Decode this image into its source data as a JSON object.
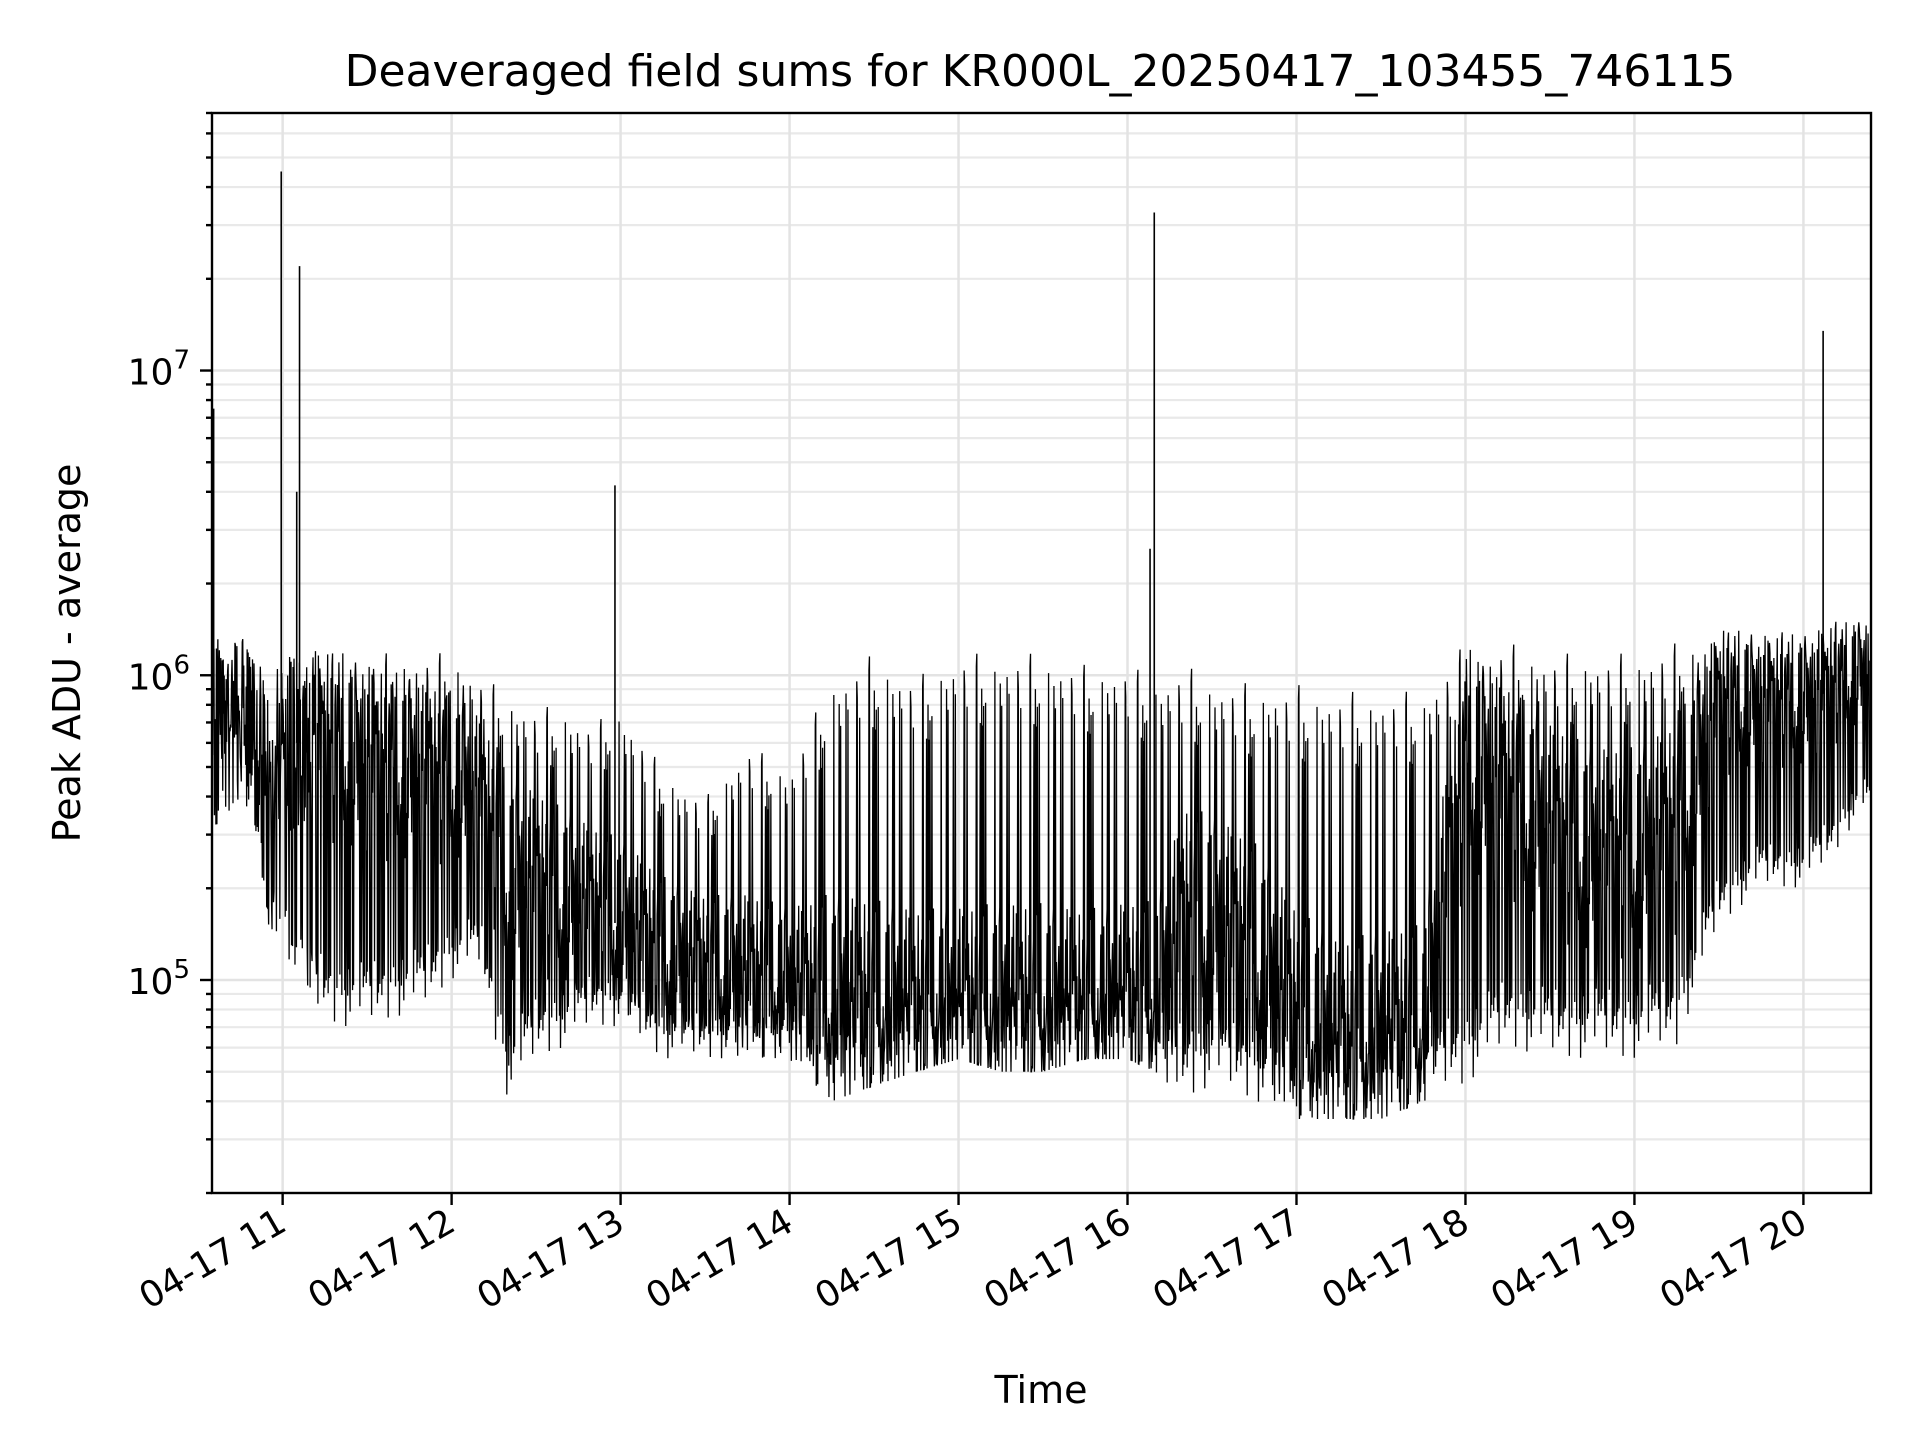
{
  "chart_data": {
    "type": "line",
    "title": "Deaveraged field sums for KR000L_20250417_103455_746115",
    "xlabel": "Time",
    "ylabel": "Peak ADU - average",
    "y_scale": "log",
    "ylim": [
      20000,
      70000000
    ],
    "xlim": [
      "2025-04-17T10:34:55",
      "2025-04-17T20:24:00"
    ],
    "x_ticks": [
      "2025-04-17T11:00",
      "2025-04-17T12:00",
      "2025-04-17T13:00",
      "2025-04-17T14:00",
      "2025-04-17T15:00",
      "2025-04-17T16:00",
      "2025-04-17T17:00",
      "2025-04-17T18:00",
      "2025-04-17T19:00",
      "2025-04-17T20:00"
    ],
    "x_tick_labels": [
      "04-17 11",
      "04-17 12",
      "04-17 13",
      "04-17 14",
      "04-17 15",
      "04-17 16",
      "04-17 17",
      "04-17 18",
      "04-17 19",
      "04-17 20"
    ],
    "y_ticks": [
      100000,
      1000000,
      10000000
    ],
    "y_tick_labels": [
      {
        "base": "10",
        "exp": "5"
      },
      {
        "base": "10",
        "exp": "6"
      },
      {
        "base": "10",
        "exp": "7"
      }
    ],
    "grid": "major and minor",
    "legend": "none",
    "series_color": "#000000",
    "series": [
      {
        "x": [
          "2025-04-17T10:35",
          "2025-04-17T10:40",
          "2025-04-17T10:45",
          "2025-04-17T10:50",
          "2025-04-17T10:55",
          "2025-04-17T11:00",
          "2025-04-17T11:05",
          "2025-04-17T11:10",
          "2025-04-17T11:20",
          "2025-04-17T11:30",
          "2025-04-17T11:40",
          "2025-04-17T11:50",
          "2025-04-17T12:00",
          "2025-04-17T12:10",
          "2025-04-17T12:20",
          "2025-04-17T12:30",
          "2025-04-17T12:40",
          "2025-04-17T12:50",
          "2025-04-17T13:00",
          "2025-04-17T13:15",
          "2025-04-17T13:30",
          "2025-04-17T13:45",
          "2025-04-17T14:00",
          "2025-04-17T14:15",
          "2025-04-17T14:30",
          "2025-04-17T14:45",
          "2025-04-17T15:00",
          "2025-04-17T15:15",
          "2025-04-17T15:30",
          "2025-04-17T15:45",
          "2025-04-17T16:00",
          "2025-04-17T16:10",
          "2025-04-17T16:20",
          "2025-04-17T16:30",
          "2025-04-17T16:45",
          "2025-04-17T17:00",
          "2025-04-17T17:15",
          "2025-04-17T17:30",
          "2025-04-17T17:45",
          "2025-04-17T18:00",
          "2025-04-17T18:15",
          "2025-04-17T18:30",
          "2025-04-17T18:45",
          "2025-04-17T19:00",
          "2025-04-17T19:15",
          "2025-04-17T19:30",
          "2025-04-17T19:45",
          "2025-04-17T20:00",
          "2025-04-17T20:10",
          "2025-04-17T20:20"
        ],
        "low": [
          300000,
          350000,
          400000,
          300000,
          150000,
          120000,
          90000,
          80000,
          70000,
          70000,
          75000,
          80000,
          100000,
          110000,
          40000,
          55000,
          60000,
          70000,
          70000,
          55000,
          55000,
          55000,
          55000,
          40000,
          45000,
          50000,
          55000,
          50000,
          50000,
          55000,
          55000,
          50000,
          40000,
          45000,
          40000,
          35000,
          35000,
          35000,
          40000,
          45000,
          60000,
          55000,
          55000,
          55000,
          60000,
          150000,
          200000,
          200000,
          250000,
          350000
        ],
        "high": [
          1500000,
          1200000,
          1400000,
          1200000,
          1000000,
          1100000,
          1200000,
          1200000,
          1200000,
          1200000,
          1200000,
          1200000,
          1200000,
          1000000,
          900000,
          800000,
          800000,
          700000,
          800000,
          500000,
          400000,
          600000,
          500000,
          1000000,
          1200000,
          1000000,
          1200000,
          1200000,
          1200000,
          1100000,
          1100000,
          1000000,
          1100000,
          1000000,
          950000,
          950000,
          900000,
          900000,
          900000,
          1300000,
          1300000,
          1200000,
          1200000,
          1200000,
          1300000,
          1400000,
          1400000,
          1400000,
          1500000,
          1600000
        ],
        "mid": [
          800000,
          700000,
          700000,
          600000,
          500000,
          600000,
          600000,
          600000,
          550000,
          500000,
          480000,
          450000,
          450000,
          400000,
          200000,
          200000,
          180000,
          170000,
          150000,
          120000,
          110000,
          100000,
          95000,
          80000,
          75000,
          75000,
          75000,
          75000,
          75000,
          75000,
          80000,
          80000,
          150000,
          150000,
          120000,
          70000,
          55000,
          60000,
          65000,
          500000,
          400000,
          300000,
          250000,
          250000,
          300000,
          800000,
          800000,
          800000,
          900000,
          1000000
        ]
      }
    ],
    "spikes": [
      {
        "x": "2025-04-17T10:35:30",
        "y": 7500000
      },
      {
        "x": "2025-04-17T10:59:30",
        "y": 45000000
      },
      {
        "x": "2025-04-17T11:06:00",
        "y": 22000000
      },
      {
        "x": "2025-04-17T11:05:00",
        "y": 4000000
      },
      {
        "x": "2025-04-17T12:58:00",
        "y": 4200000
      },
      {
        "x": "2025-04-17T16:08:00",
        "y": 2600000
      },
      {
        "x": "2025-04-17T16:09:30",
        "y": 33000000
      },
      {
        "x": "2025-04-17T20:07:00",
        "y": 13500000
      }
    ]
  }
}
